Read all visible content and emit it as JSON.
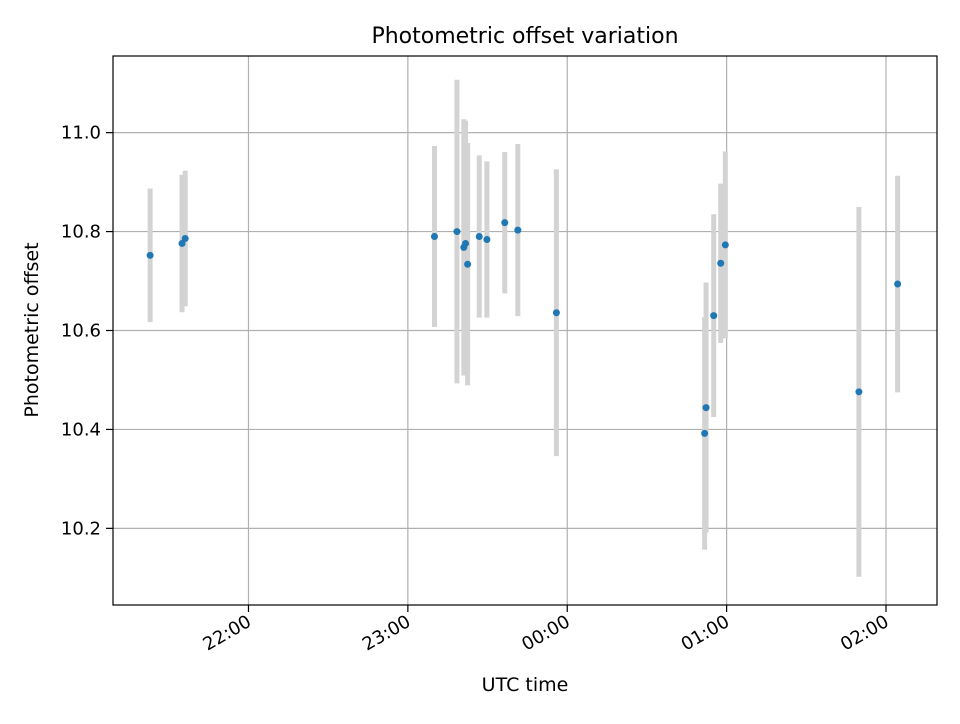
{
  "chart_data": {
    "type": "scatter",
    "title": "Photometric offset variation",
    "xlabel": "UTC time",
    "ylabel": "Photometric offset",
    "xlim": [
      21.15,
      26.32
    ],
    "ylim": [
      10.045,
      11.155
    ],
    "grid": true,
    "x_ticks": [
      {
        "value": 22,
        "label": "22:00"
      },
      {
        "value": 23,
        "label": "23:00"
      },
      {
        "value": 24,
        "label": "00:00"
      },
      {
        "value": 25,
        "label": "01:00"
      },
      {
        "value": 26,
        "label": "02:00"
      }
    ],
    "y_ticks": [
      {
        "value": 10.2,
        "label": "10.2"
      },
      {
        "value": 10.4,
        "label": "10.4"
      },
      {
        "value": 10.6,
        "label": "10.6"
      },
      {
        "value": 10.8,
        "label": "10.8"
      },
      {
        "value": 11.0,
        "label": "11.0"
      }
    ],
    "colors": {
      "point": "#1f77b4",
      "errorbar": "#d3d3d3",
      "grid": "#b0b0b0",
      "axes": "#000000"
    },
    "series": [
      {
        "name": "Photometric offset",
        "points": [
          {
            "x": 21.383,
            "y": 10.752,
            "yerr": 0.135
          },
          {
            "x": 21.583,
            "y": 10.776,
            "yerr": 0.139
          },
          {
            "x": 21.603,
            "y": 10.786,
            "yerr": 0.137
          },
          {
            "x": 23.167,
            "y": 10.79,
            "yerr": 0.183
          },
          {
            "x": 23.308,
            "y": 10.8,
            "yerr": 0.307
          },
          {
            "x": 23.351,
            "y": 10.768,
            "yerr": 0.259
          },
          {
            "x": 23.362,
            "y": 10.776,
            "yerr": 0.248
          },
          {
            "x": 23.375,
            "y": 10.734,
            "yerr": 0.245
          },
          {
            "x": 23.448,
            "y": 10.79,
            "yerr": 0.164
          },
          {
            "x": 23.496,
            "y": 10.784,
            "yerr": 0.158
          },
          {
            "x": 23.608,
            "y": 10.818,
            "yerr": 0.143
          },
          {
            "x": 23.69,
            "y": 10.803,
            "yerr": 0.174
          },
          {
            "x": 23.932,
            "y": 10.636,
            "yerr": 0.29
          },
          {
            "x": 24.862,
            "y": 10.392,
            "yerr": 0.235
          },
          {
            "x": 24.871,
            "y": 10.444,
            "yerr": 0.253
          },
          {
            "x": 24.919,
            "y": 10.63,
            "yerr": 0.205
          },
          {
            "x": 24.963,
            "y": 10.736,
            "yerr": 0.161
          },
          {
            "x": 24.992,
            "y": 10.773,
            "yerr": 0.189
          },
          {
            "x": 25.83,
            "y": 10.476,
            "yerr": 0.374
          },
          {
            "x": 26.073,
            "y": 10.694,
            "yerr": 0.219
          }
        ]
      }
    ]
  }
}
